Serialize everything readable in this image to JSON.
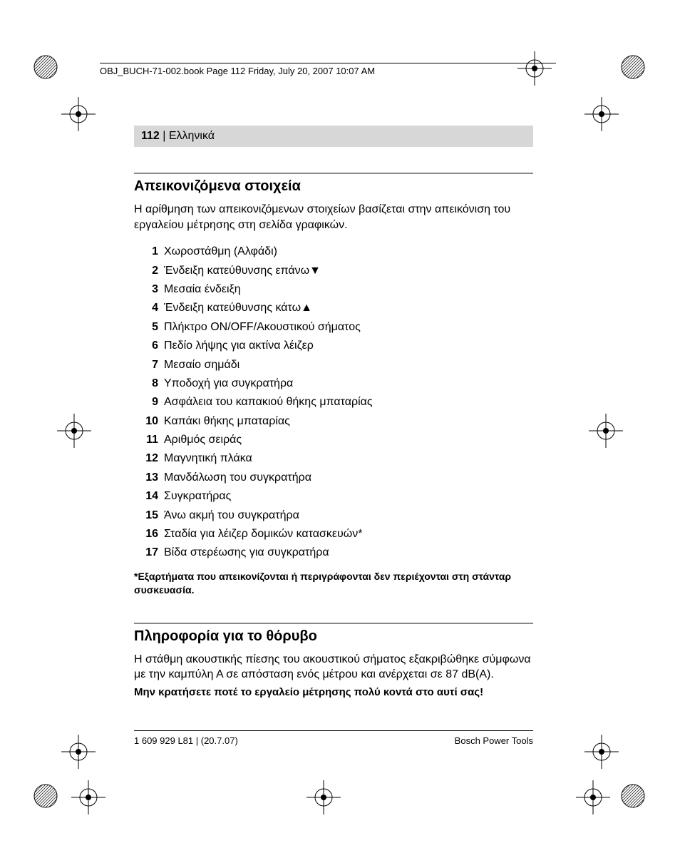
{
  "header_line": "OBJ_BUCH-71-002.book  Page 112  Friday, July 20, 2007  10:07 AM",
  "page_bar": {
    "number": "112",
    "sep": " | ",
    "lang": "Ελληνικά"
  },
  "section1": {
    "title": "Απεικονιζόμενα στοιχεία",
    "intro": "Η αρίθμηση των απεικονιζόμενων στοιχείων βασίζεται στην απεικόνιση του εργαλείου μέτρησης στη σελίδα γραφικών.",
    "items": [
      {
        "n": "1",
        "t": "Χωροστάθμη (Αλφάδι)"
      },
      {
        "n": "2",
        "t": "Ένδειξη κατεύθυνσης επάνω",
        "icon": "triangle-down"
      },
      {
        "n": "3",
        "t": "Μεσαία ένδειξη"
      },
      {
        "n": "4",
        "t": "Ένδειξη κατεύθυνσης κάτω",
        "icon": "triangle-up"
      },
      {
        "n": "5",
        "t": "Πλήκτρο ON/OFF/Ακουστικού σήματος"
      },
      {
        "n": "6",
        "t": "Πεδίο λήψης για ακτίνα λέιζερ"
      },
      {
        "n": "7",
        "t": "Μεσαίο σημάδι"
      },
      {
        "n": "8",
        "t": "Υποδοχή για συγκρατήρα"
      },
      {
        "n": "9",
        "t": "Ασφάλεια του καπακιού θήκης μπαταρίας"
      },
      {
        "n": "10",
        "t": "Καπάκι θήκης μπαταρίας"
      },
      {
        "n": "11",
        "t": "Αριθμός σειράς"
      },
      {
        "n": "12",
        "t": "Μαγνητική πλάκα"
      },
      {
        "n": "13",
        "t": "Μανδάλωση του συγκρατήρα"
      },
      {
        "n": "14",
        "t": "Συγκρατήρας"
      },
      {
        "n": "15",
        "t": "Άνω ακμή του συγκρατήρα"
      },
      {
        "n": "16",
        "t": "Σταδία για λέιζερ δομικών κατασκευών*"
      },
      {
        "n": "17",
        "t": "Βίδα στερέωσης για συγκρατήρα"
      }
    ],
    "note": "*Εξαρτήματα που απεικονίζονται ή περιγράφονται δεν περιέχονται στη στάνταρ συσκευασία."
  },
  "section2": {
    "title": "Πληροφορία για το θόρυβο",
    "body": "Η στάθμη ακουστικής πίεσης του ακουστικού σήματος εξακριβώθηκε σύμφωνα με την καμπύλη Α σε απόσταση ενός μέτρου και ανέρχεται σε 87 dB(A).",
    "warn": "Μην κρατήσετε ποτέ το εργαλείο μέτρησης πολύ κοντά στο αυτί σας!"
  },
  "footer": {
    "left": "1 609 929 L81 | (20.7.07)",
    "right": "Bosch Power Tools"
  },
  "colors": {
    "bar_bg": "#d7d7d7",
    "rule": "#888888",
    "text": "#000000"
  }
}
